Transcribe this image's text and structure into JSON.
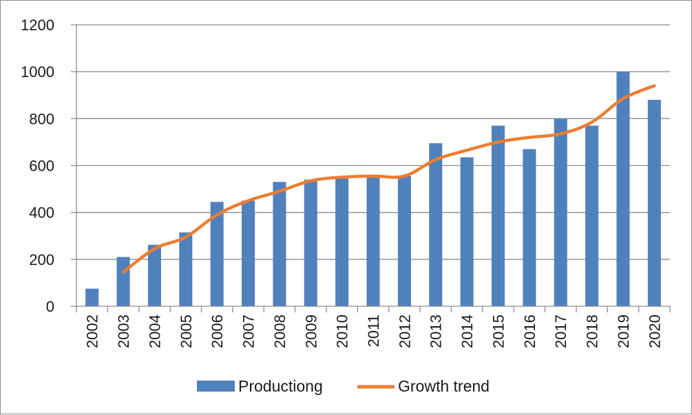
{
  "chart_data": {
    "type": "bar",
    "categories": [
      "2002",
      "2003",
      "2004",
      "2005",
      "2006",
      "2007",
      "2008",
      "2009",
      "2010",
      "2011",
      "2012",
      "2013",
      "2014",
      "2015",
      "2016",
      "2017",
      "2018",
      "2019",
      "2020"
    ],
    "series": [
      {
        "name": "Productiong",
        "type": "bar",
        "color": "#4f81bd",
        "values": [
          75,
          210,
          262,
          315,
          445,
          450,
          530,
          540,
          545,
          555,
          555,
          695,
          635,
          770,
          670,
          800,
          770,
          1000,
          880
        ]
      },
      {
        "name": "Growth trend",
        "type": "line",
        "color": "#ed7d31",
        "values": [
          null,
          145,
          245,
          295,
          390,
          450,
          490,
          535,
          550,
          555,
          555,
          625,
          665,
          700,
          720,
          735,
          785,
          885,
          940
        ]
      }
    ],
    "title": "",
    "xlabel": "",
    "ylabel": "",
    "ylim": [
      0,
      1200
    ],
    "yticks": [
      0,
      200,
      400,
      600,
      800,
      1000,
      1200
    ],
    "grid": true,
    "legend_position": "bottom"
  }
}
